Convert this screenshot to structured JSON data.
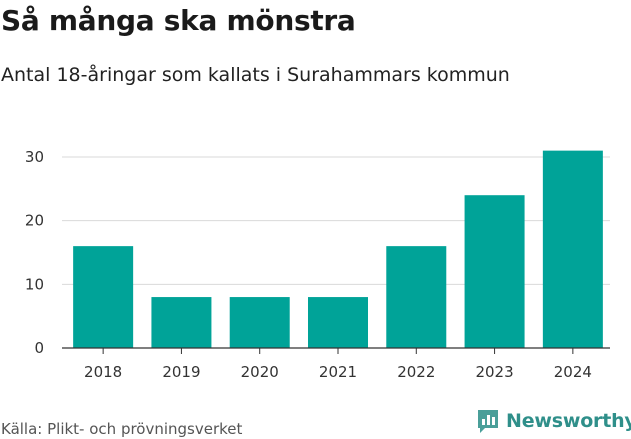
{
  "header": {
    "title": "Så många ska mönstra",
    "subtitle": "Antal 18-åringar som kallats i Surahammars kommun"
  },
  "chart_data": {
    "type": "bar",
    "categories": [
      "2018",
      "2019",
      "2020",
      "2021",
      "2022",
      "2023",
      "2024"
    ],
    "values": [
      16,
      8,
      8,
      8,
      16,
      24,
      31
    ],
    "ylim": [
      0,
      30
    ],
    "yticks": [
      0,
      10,
      20,
      30
    ],
    "grid": true,
    "color": "#00a398"
  },
  "footer": {
    "source": "Källa: Plikt- och prövningsverket",
    "brand": "Newsworthy",
    "brand_color": "#2f8f8a"
  }
}
